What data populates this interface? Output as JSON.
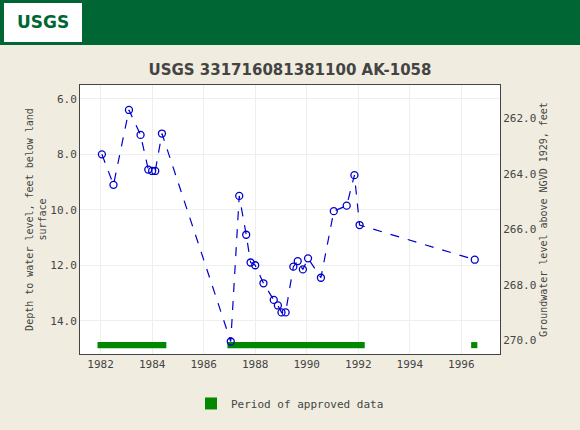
{
  "chart_data": {
    "type": "line",
    "title": "USGS 331716081381100 AK-1058",
    "annotations": [
      {
        "text": "USGS"
      }
    ],
    "ylabel": "Depth to water level, feet below land\nsurface",
    "y2label": "Groundwater level above NGVD 1929, feet",
    "xlim": [
      1981.2,
      1997.5
    ],
    "xticks": [
      1982,
      1984,
      1986,
      1988,
      1990,
      1992,
      1994,
      1996
    ],
    "ylim": [
      15.2,
      5.5
    ],
    "yticks": [
      {
        "value": 6.0,
        "label": "6.0"
      },
      {
        "value": 8.0,
        "label": "8.0"
      },
      {
        "value": 10.0,
        "label": "10.0"
      },
      {
        "value": 12.0,
        "label": "12.0"
      },
      {
        "value": 14.0,
        "label": "14.0"
      }
    ],
    "y2lim": [
      270.5,
      260.8
    ],
    "y2ticks": [
      {
        "value": 262.0,
        "label": "262.0"
      },
      {
        "value": 264.0,
        "label": "264.0"
      },
      {
        "value": 266.0,
        "label": "266.0"
      },
      {
        "value": 268.0,
        "label": "268.0"
      },
      {
        "value": 270.0,
        "label": "270.0"
      }
    ],
    "grid": true,
    "legend": "bottom",
    "series": [
      {
        "type": "line",
        "color": "#0000CC",
        "line_style": "dashed",
        "marker": "circle-open",
        "x": [
          1982.05,
          1982.5,
          1983.1,
          1983.55,
          1983.85,
          1984.0,
          1984.12,
          1984.38,
          1987.05,
          1987.38,
          1987.65,
          1987.82,
          1988.0,
          1988.32,
          1988.72,
          1988.88,
          1989.02,
          1989.18,
          1989.48,
          1989.65,
          1989.85,
          1990.05,
          1990.55,
          1991.05,
          1991.55,
          1991.85,
          1992.05,
          1996.52
        ],
        "values": [
          8.0,
          9.1,
          6.4,
          7.3,
          8.55,
          8.6,
          8.6,
          7.25,
          14.75,
          9.5,
          10.9,
          11.9,
          12.0,
          12.65,
          13.25,
          13.45,
          13.7,
          13.7,
          12.05,
          11.85,
          12.15,
          11.75,
          12.45,
          10.05,
          9.85,
          8.75,
          10.55,
          11.8
        ]
      },
      {
        "name": "Period of approved data",
        "type": "bar",
        "orientation": "horizontal",
        "color": "#008800",
        "starts": [
          1981.88,
          1986.92,
          1996.38
        ],
        "ends": [
          1984.55,
          1992.25,
          1996.62
        ],
        "y": 14.88,
        "height": 0.22
      }
    ]
  }
}
